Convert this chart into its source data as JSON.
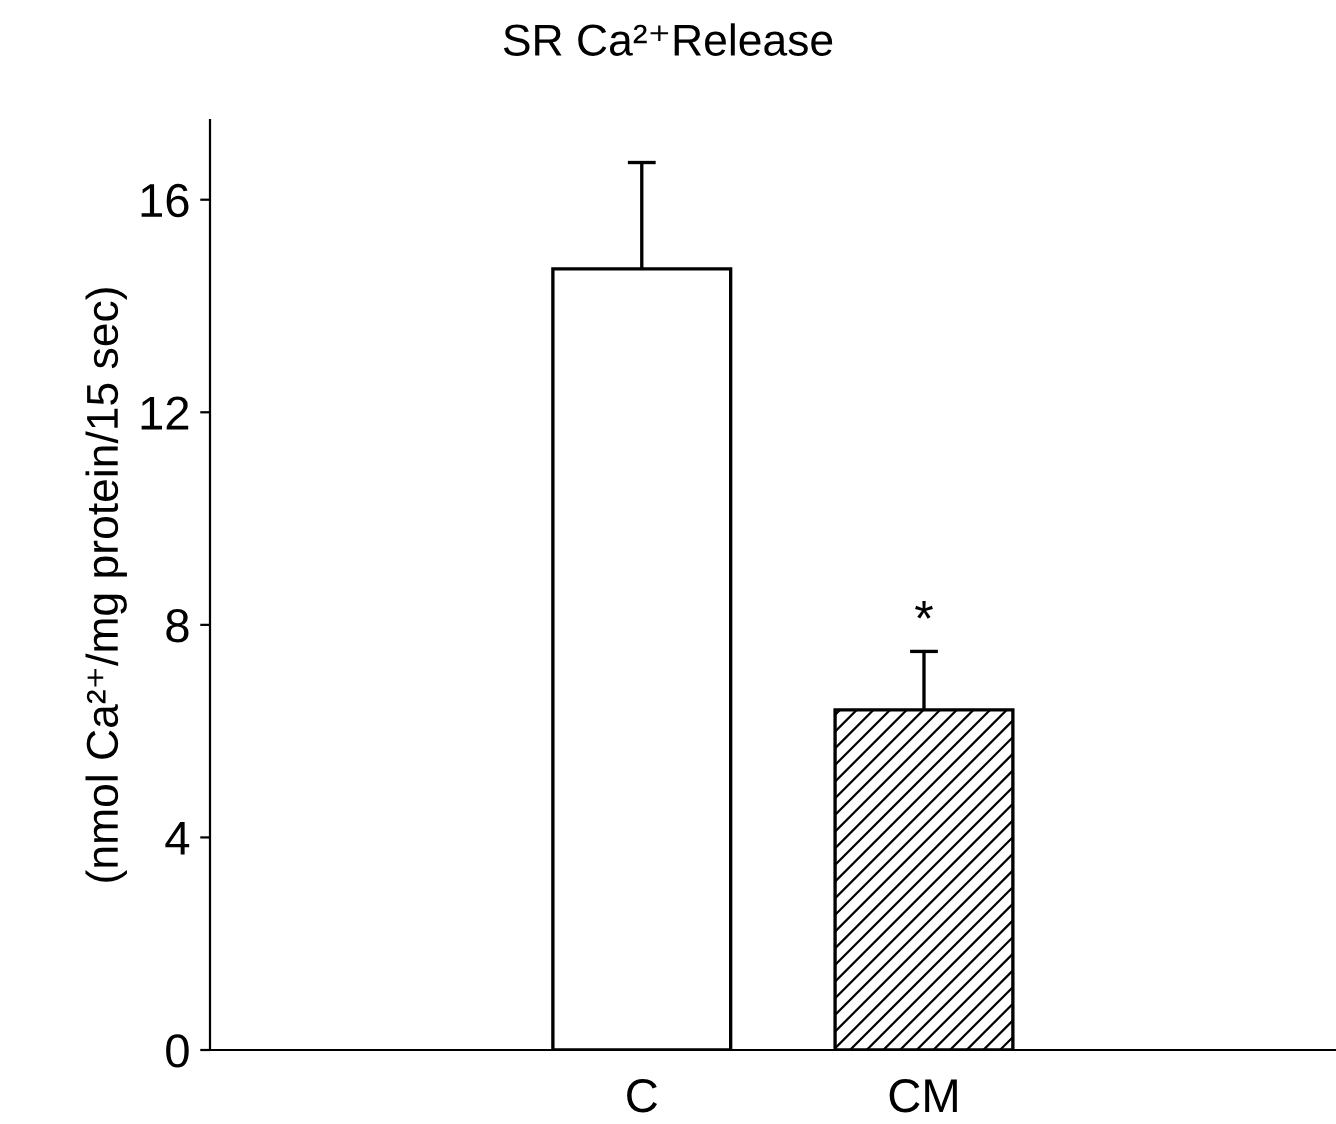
{
  "chart_data": {
    "type": "bar",
    "title": "SR Ca²⁺Release",
    "ylabel": "(nmol Ca²⁺/mg protein/15 sec)",
    "categories": [
      "C",
      "CM"
    ],
    "values": [
      14.7,
      6.4
    ],
    "errors": [
      2.0,
      1.1
    ],
    "colors": [
      "#ffffff",
      "#000000"
    ],
    "ylim": [
      0,
      17.5
    ],
    "yticks": [
      0,
      4,
      8,
      12,
      16
    ],
    "annotations": [
      "*"
    ],
    "grid": false,
    "legend": false
  }
}
